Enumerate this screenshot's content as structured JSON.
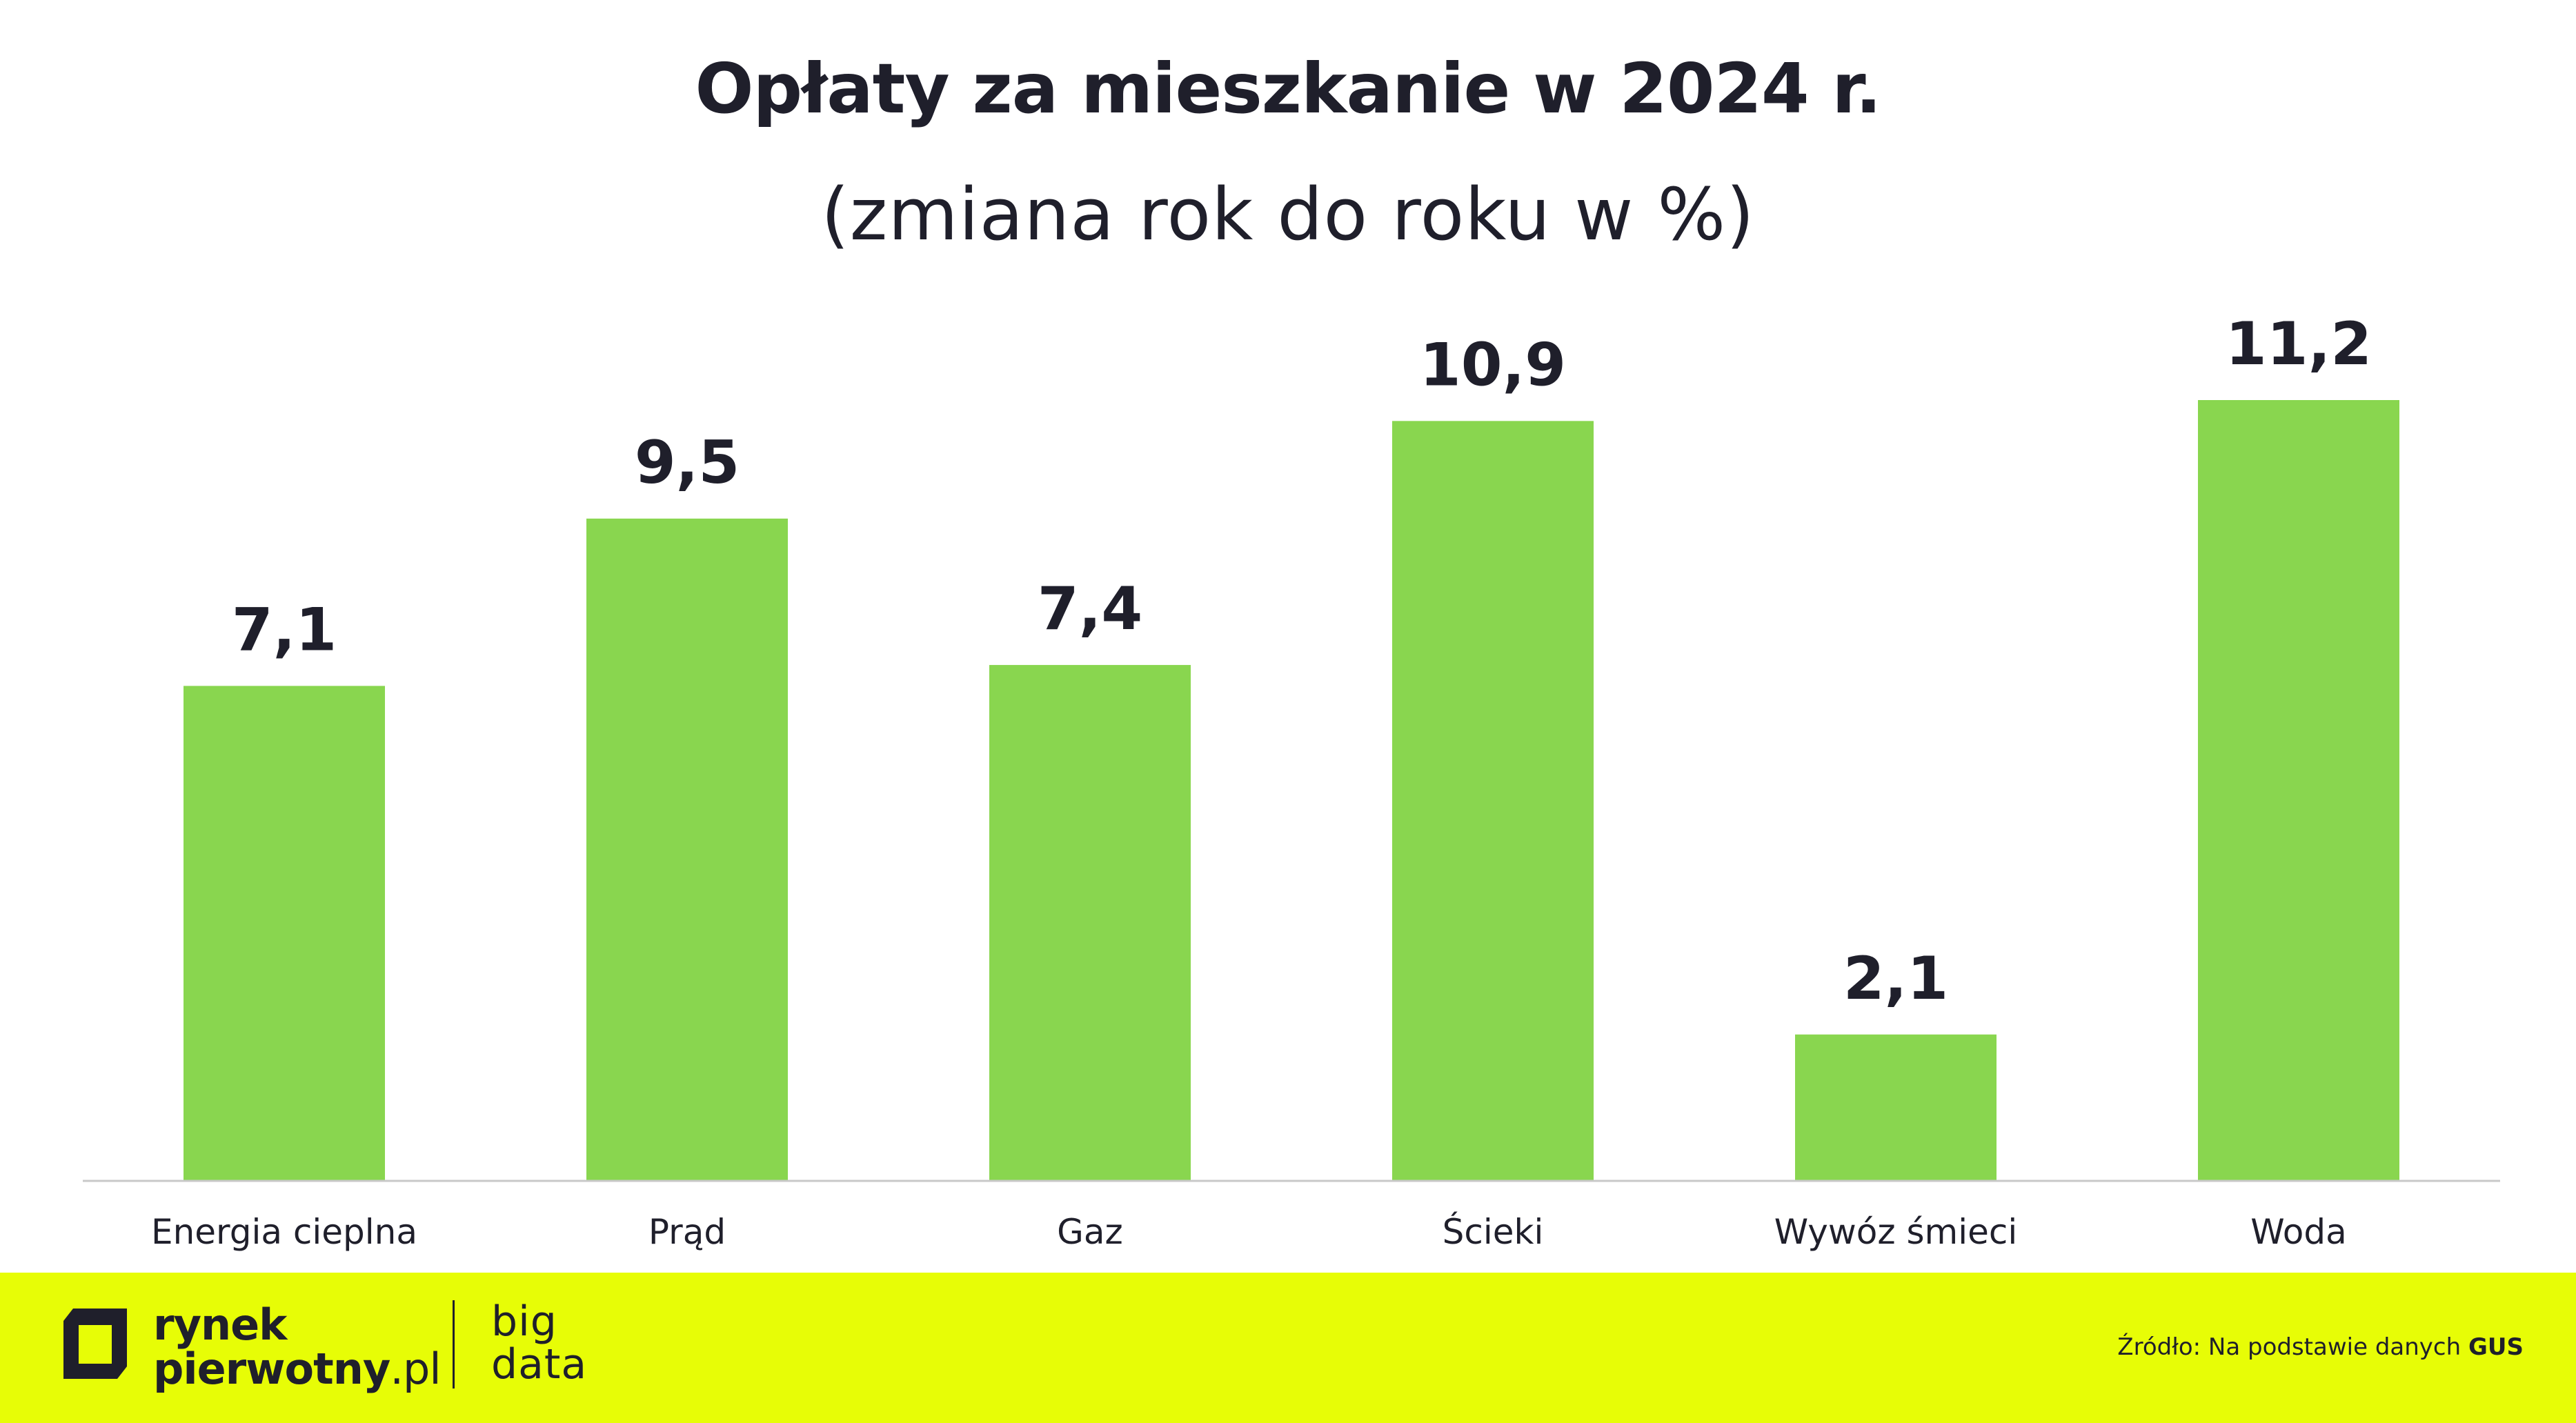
{
  "chart_data": {
    "type": "bar",
    "title": "Opłaty za mieszkanie w 2024 r.",
    "subtitle": "(zmiana rok do roku w %)",
    "categories": [
      "Energia cieplna",
      "Prąd",
      "Gaz",
      "Ścieki",
      "Wywóz śmieci",
      "Woda"
    ],
    "values": [
      7.1,
      9.5,
      7.4,
      10.9,
      2.1,
      11.2
    ],
    "value_labels": [
      "7,1",
      "9,5",
      "7,4",
      "10,9",
      "2,1",
      "11,2"
    ],
    "xlabel": "",
    "ylabel": "",
    "ylim": [
      0,
      11.2
    ],
    "grid": false,
    "colors": {
      "bar": "#89d64f"
    }
  },
  "footer": {
    "logo_line1": "rynek",
    "logo_line2_bold": "pierwotny",
    "logo_line2_thin": ".pl",
    "bigdata_line1": "big",
    "bigdata_line2": "data",
    "source_prefix": "Źródło: Na podstawie danych",
    "source_name": "GUS",
    "background": "#e7fd06"
  }
}
